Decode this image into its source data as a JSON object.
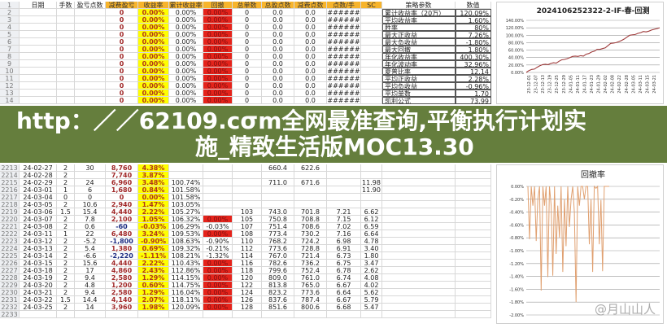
{
  "sheet": {
    "headers": [
      "日期",
      "手数",
      "盈亏点数",
      "减费盈亏",
      "收益率",
      "累计收益率",
      "回撤",
      "总单数",
      "总盈点数",
      "减费点数",
      "点数/手",
      "SC"
    ],
    "rows": [
      [
        "2",
        "",
        "",
        "",
        "0",
        "0.00%",
        "0.00%",
        "0.00%",
        "0",
        "0.0",
        "0.0",
        "######"
      ],
      [
        "3",
        "",
        "",
        "",
        "0",
        "0.00%",
        "0.00%",
        "0.00%",
        "0",
        "0.0",
        "0.0",
        "######"
      ],
      [
        "4",
        "",
        "",
        "",
        "0",
        "0.00%",
        "0.00%",
        "0.00%",
        "0",
        "0.0",
        "0.0",
        "######"
      ],
      [
        "5",
        "",
        "",
        "",
        "0",
        "0.00%",
        "0.00%",
        "0.00%",
        "0",
        "0.0",
        "0.0",
        "######"
      ],
      [
        "6",
        "",
        "",
        "",
        "0",
        "0.00%",
        "0.00%",
        "0.00%",
        "0",
        "0.0",
        "0.0",
        "######"
      ],
      [
        "7",
        "",
        "",
        "",
        "0",
        "0.00%",
        "0.00%",
        "0.00%",
        "0",
        "0.0",
        "0.0",
        "######"
      ],
      [
        "8",
        "",
        "",
        "",
        "0",
        "0.00%",
        "0.00%",
        "0.00%",
        "0",
        "0.0",
        "0.0",
        "######"
      ],
      [
        "9",
        "",
        "",
        "",
        "0",
        "0.00%",
        "0.00%",
        "0.00%",
        "0",
        "0.0",
        "0.0",
        "######"
      ],
      [
        "10",
        "",
        "",
        "",
        "0",
        "0.00%",
        "0.00%",
        "0.00%",
        "0",
        "0.0",
        "0.0",
        "######"
      ],
      [
        "11",
        "",
        "",
        "",
        "0",
        "0.00%",
        "0.00%",
        "0.00%",
        "0",
        "0.0",
        "0.0",
        "######"
      ],
      [
        "12",
        "",
        "",
        "",
        "0",
        "0.00%",
        "0.00%",
        "0.00%",
        "0",
        "0.0",
        "0.0",
        "######"
      ],
      [
        "13",
        "",
        "",
        "",
        "0",
        "0.00%",
        "0.00%",
        "0.00%",
        "0",
        "0.0",
        "0.0",
        "######"
      ],
      [
        "14",
        "",
        "",
        "",
        "0",
        "0.00%",
        "0.00%",
        "0.00%",
        "0",
        "0.0",
        "0.0",
        "######"
      ],
      [
        "2213",
        "24-02-27",
        "2",
        "30",
        "8,760",
        "4.38%",
        "",
        "",
        "",
        "660.4",
        "622.6",
        ""
      ],
      [
        "2214",
        "24-02-28",
        "2",
        "",
        "7,740",
        "3.87%",
        "",
        "",
        "",
        "",
        "",
        ""
      ],
      [
        "2215",
        "24-02-29",
        "2",
        "24",
        "6,960",
        "3.48%",
        "100.74%",
        "",
        "",
        "711.0",
        "671.6",
        ""
      ],
      [
        "2216",
        "24-03-01",
        "1",
        "6",
        "1,680",
        "0.84%",
        "101.58%",
        "",
        "",
        "",
        "",
        ""
      ],
      [
        "2217",
        "24-03-04",
        "0",
        "0",
        "0",
        "0.00%",
        "101.58%",
        "",
        "",
        "",
        "",
        ""
      ],
      [
        "2218",
        "24-03-05",
        "2",
        "10.6",
        "2,940",
        "1.47%",
        "103.05%",
        "",
        "",
        "",
        "",
        ""
      ],
      [
        "2219",
        "24-03-06",
        "1.5",
        "15.4",
        "4,440",
        "2.22%",
        "105.27%",
        "",
        "103",
        "743.0",
        "701.8",
        "7.21"
      ],
      [
        "2220",
        "24-03-07",
        "2",
        "7.8",
        "2,100",
        "1.05%",
        "106.32%",
        "0.00%",
        "105",
        "750.8",
        "708.8",
        "7.15"
      ],
      [
        "2221",
        "24-03-08",
        "2",
        "0.6",
        "-60",
        "-0.03%",
        "106.29%",
        "-0.03%",
        "107",
        "751.4",
        "708.6",
        "7.02"
      ],
      [
        "2222",
        "24-03-11",
        "1",
        "22",
        "6,480",
        "3.24%",
        "109.53%",
        "0.00%",
        "108",
        "773.4",
        "730.2",
        "7.16"
      ],
      [
        "2223",
        "24-03-12",
        "2",
        "-5.2",
        "-1,800",
        "-0.90%",
        "108.63%",
        "-0.90%",
        "110",
        "768.2",
        "724.2",
        "6.98"
      ],
      [
        "2224",
        "24-03-13",
        "2",
        "5.4",
        "1,380",
        "0.69%",
        "109.32%",
        "-0.21%",
        "112",
        "773.6",
        "728.8",
        "6.91"
      ],
      [
        "2225",
        "24-03-14",
        "2",
        "-6.6",
        "-2,220",
        "-1.11%",
        "108.21%",
        "-1.32%",
        "114",
        "767.0",
        "721.4",
        "6.73"
      ],
      [
        "2226",
        "24-03-15",
        "2",
        "15.6",
        "4,440",
        "2.22%",
        "110.43%",
        "0.00%",
        "116",
        "782.6",
        "736.2",
        "6.75"
      ],
      [
        "2227",
        "24-03-18",
        "2",
        "17",
        "4,860",
        "2.43%",
        "112.86%",
        "0.00%",
        "118",
        "799.6",
        "752.4",
        "6.78"
      ],
      [
        "2228",
        "24-03-19",
        "2",
        "9.4",
        "2,580",
        "1.29%",
        "114.15%",
        "0.00%",
        "120",
        "809.0",
        "761.0",
        "6.74"
      ],
      [
        "2229",
        "24-03-20",
        "2",
        "4.8",
        "1,200",
        "0.60%",
        "114.75%",
        "0.00%",
        "122",
        "813.8",
        "765.0",
        "6.67"
      ],
      [
        "2230",
        "24-03-21",
        "2",
        "9.4",
        "2,580",
        "1.29%",
        "116.04%",
        "0.00%",
        "124",
        "823.2",
        "773.6",
        "6.64"
      ],
      [
        "2231",
        "24-03-22",
        "1.5",
        "14.4",
        "4,140",
        "2.07%",
        "118.11%",
        "0.00%",
        "126",
        "837.6",
        "787.4",
        "6.67"
      ],
      [
        "2232",
        "24-03-25",
        "2",
        "14",
        "3,960",
        "1.98%",
        "120.09%",
        "0.00%",
        "128",
        "851.6",
        "800.6",
        "6.68"
      ],
      [
        "2233",
        "",
        "",
        "",
        "",
        "",
        "",
        "",
        "",
        "",
        "",
        ""
      ]
    ],
    "extra_col": [
      "",
      "",
      "",
      "",
      "",
      "",
      "",
      "",
      "",
      "",
      "",
      "",
      "",
      "",
      "",
      "11.98",
      "11.90",
      "",
      "",
      "6.62",
      "6.12",
      "6.59",
      "6.64",
      "4.78",
      "3.40",
      "1.80",
      "3.47",
      "2.62",
      "4.08",
      "4.02",
      "5.62",
      "5.79",
      "5.47",
      ""
    ],
    "stats_header": [
      "策略参数",
      "数值"
    ],
    "stats": [
      [
        "累计收益率（20万）",
        "120.09%"
      ],
      [
        "平均收益率",
        "1.60%"
      ],
      [
        "胜率",
        "80%"
      ],
      [
        "最大正收益",
        "7.26%"
      ],
      [
        "最大负收益",
        "-1.80%"
      ],
      [
        "最大回撤",
        "1.80%"
      ],
      [
        "年化收益率",
        "400.30%"
      ],
      [
        "年化波动率",
        "32.96%"
      ],
      [
        "夏普比率",
        "12.14"
      ],
      [
        "平均正收益",
        "2.28%"
      ],
      [
        "平均负收益",
        "-0.96%"
      ],
      [
        "平均单数",
        "1.70"
      ],
      [
        "凯利公式",
        "73.99"
      ]
    ]
  },
  "chart_data": [
    {
      "type": "line",
      "title": "2024106252322-2-IF-春-回测",
      "x_ticks": [
        "23-12-01",
        "23-12-07",
        "23-12-13",
        "23-12-19",
        "23-12-25",
        "23-12-29",
        "24-01-05",
        "24-01-11",
        "24-01-17",
        "24-01-23",
        "24-01-29",
        "24-02-02",
        "24-02-08",
        "24-02-22",
        "24-02-28",
        "24-03-05",
        "24-03-11",
        "24-03-15",
        "24-03-21"
      ],
      "values": [
        0,
        5,
        8,
        9,
        14,
        18,
        21,
        22,
        21,
        24,
        26,
        25,
        30,
        34,
        35,
        37,
        40,
        43,
        44,
        43,
        45,
        44,
        49,
        51,
        55,
        57,
        62,
        62,
        64,
        66,
        72,
        78,
        79,
        80,
        83,
        86,
        90,
        95,
        100,
        101,
        102,
        105,
        107,
        110,
        109,
        111,
        114,
        116,
        118,
        120.09
      ],
      "ylim": [
        0,
        140
      ],
      "y_ticks": [
        "0.00%",
        "20.00%",
        "40.00%",
        "60.00%",
        "80.00%",
        "100.00%",
        "120.00%",
        "140.00%"
      ],
      "color": "#9e3a3a"
    },
    {
      "type": "line",
      "title": "回撤率",
      "values": [
        0,
        -0.82,
        0,
        -0.3,
        0,
        -0.85,
        -0.2,
        0,
        -1.62,
        0,
        -0.3,
        0,
        -1.41,
        0,
        -0.3,
        -1.39,
        0,
        -1.05,
        -0.3,
        -0.8,
        0,
        -1.33,
        -0.2,
        -0.93,
        0,
        -0.63,
        -0.2,
        0,
        -0.4,
        -1.8,
        0,
        -0.3,
        0,
        0,
        -0.2,
        0,
        0,
        -0.9,
        -0.2,
        -1.33,
        0,
        -0.03,
        0,
        -0.9,
        -0.21,
        -1.32,
        0,
        0,
        0,
        0
      ],
      "ylim": [
        -2,
        0
      ],
      "y_ticks": [
        "0.00%",
        "-0.20%",
        "-0.40%",
        "-0.60%",
        "-0.80%",
        "-1.00%",
        "-1.20%",
        "-1.40%",
        "-1.60%",
        "-1.80%",
        "-2.00%"
      ],
      "color": "#e0a070"
    }
  ],
  "overlay": {
    "line1": "http：／／62109.cσm全网最准查询,平衡执行计划实",
    "line2": "施_精致生活版MOC13.30"
  },
  "watermark": "@月山山人"
}
